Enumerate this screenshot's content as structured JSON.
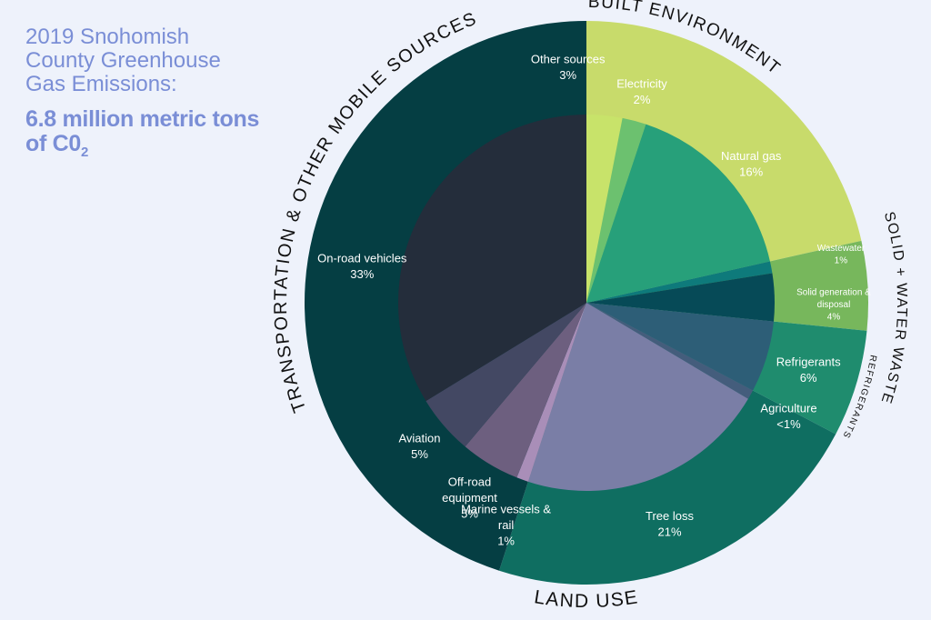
{
  "title": "2019 Snohomish County Greenhouse Gas Emissions:",
  "subtitle_main": "6.8 million metric tons of C0",
  "subtitle_sub": "2",
  "chart_data": {
    "type": "pie",
    "subtype": "sunburst",
    "rings": [
      "sector",
      "source"
    ],
    "total_label": "6.8 million metric tons of CO2",
    "groups": [
      {
        "name": "BUILT ENVIRONMENT",
        "color": "#c8db6b",
        "categories": [
          {
            "name": "Other sources",
            "label": "Other sources",
            "value_label": "3%",
            "value": 3,
            "color": "#c8e36a"
          },
          {
            "name": "Electricity",
            "label": "Electricity",
            "value_label": "2%",
            "value": 2,
            "color": "#6cc16f"
          },
          {
            "name": "Natural gas",
            "label": "Natural gas",
            "value_label": "16%",
            "value": 16,
            "color": "#27a07a"
          }
        ]
      },
      {
        "name": "SOLID + WATER WASTE",
        "color": "#77b75c",
        "categories": [
          {
            "name": "Wastewater",
            "label": "Wastewater",
            "value_label": "1%",
            "value": 1,
            "color": "#0e7a7b"
          },
          {
            "name": "Solid generation & disposal",
            "label": "Solid generation & disposal",
            "value_label": "4%",
            "value": 4,
            "color": "#064a57"
          }
        ]
      },
      {
        "name": "REFRIGERANTS",
        "color": "#1f8c6e",
        "categories": [
          {
            "name": "Refrigerants",
            "label": "Refrigerants",
            "value_label": "6%",
            "value": 6,
            "color": "#2d5e77"
          }
        ]
      },
      {
        "name": "LAND USE",
        "color": "#0f6e61",
        "categories": [
          {
            "name": "Agriculture",
            "label": "Agriculture",
            "value_label": "<1%",
            "value": 0.8,
            "color": "#445d7c"
          },
          {
            "name": "Tree loss",
            "label": "Tree loss",
            "value_label": "21%",
            "value": 21,
            "color": "#7a7ea6"
          }
        ]
      },
      {
        "name": "TRANSPORTATION & OTHER MOBILE SOURCES",
        "color": "#053e43",
        "categories": [
          {
            "name": "Marine vessels & rail",
            "label": "Marine vessels & rail",
            "value_label": "1%",
            "value": 1,
            "color": "#a98eb8"
          },
          {
            "name": "Off-road equipment",
            "label": "Off-road equipment",
            "value_label": "5%",
            "value": 5,
            "color": "#6d5f7f"
          },
          {
            "name": "Aviation",
            "label": "Aviation",
            "value_label": "5%",
            "value": 5,
            "color": "#434863"
          },
          {
            "name": "On-road vehicles",
            "label": "On-road vehicles",
            "value_label": "33%",
            "value": 33,
            "color": "#242d3b"
          }
        ]
      }
    ]
  }
}
